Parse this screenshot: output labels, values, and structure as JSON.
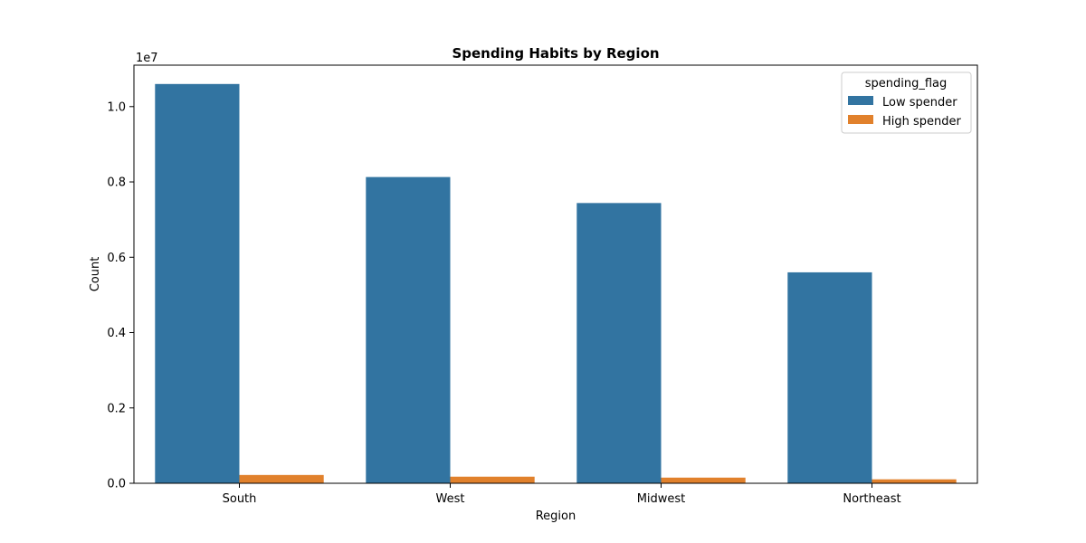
{
  "chart_data": {
    "type": "bar",
    "title": "Spending Habits by Region",
    "xlabel": "Region",
    "ylabel": "Count",
    "y_offset_label": "1e7",
    "categories": [
      "South",
      "West",
      "Midwest",
      "Northeast"
    ],
    "series": [
      {
        "name": "Low spender",
        "color": "#3274a1",
        "values": [
          10600000,
          8130000,
          7440000,
          5600000
        ]
      },
      {
        "name": "High spender",
        "color": "#e1812c",
        "values": [
          220000,
          175000,
          150000,
          105000
        ]
      }
    ],
    "ylim": [
      0,
      11100000
    ],
    "yticks": [
      0,
      2000000,
      4000000,
      6000000,
      8000000,
      10000000
    ],
    "ytick_labels": [
      "0.0",
      "0.2",
      "0.4",
      "0.6",
      "0.8",
      "1.0"
    ],
    "legend": {
      "title": "spending_flag",
      "placement": "top-right"
    },
    "grid": false
  }
}
